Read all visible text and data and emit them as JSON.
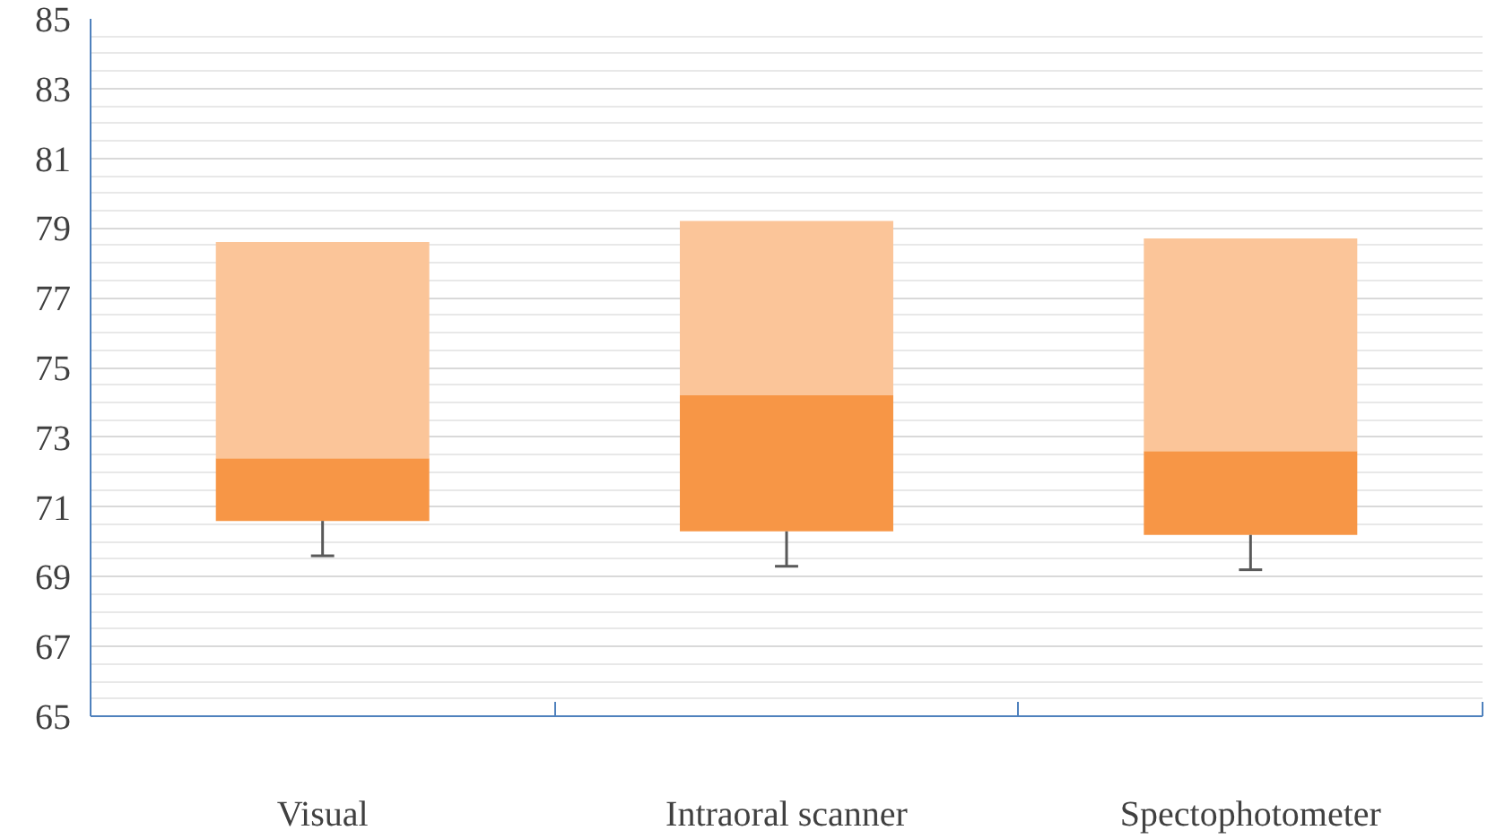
{
  "chart_data": {
    "type": "box",
    "categories": [
      "Visual",
      "Intraoral scanner",
      "Spectophotometer"
    ],
    "boxes": [
      {
        "low": 69.6,
        "q1": 70.6,
        "median": 72.4,
        "q3": 78.6,
        "high": 78.6
      },
      {
        "low": 69.3,
        "q1": 70.3,
        "median": 74.2,
        "q3": 79.2,
        "high": 79.2
      },
      {
        "low": 69.2,
        "q1": 70.2,
        "median": 72.6,
        "q3": 78.7,
        "high": 78.7
      }
    ],
    "colors": [
      "#f79646",
      "#f79646",
      "#f79646"
    ],
    "ylim": [
      65,
      85
    ],
    "yticks": [
      65,
      67,
      69,
      71,
      73,
      75,
      77,
      79,
      81,
      83,
      85
    ],
    "grid": "y"
  }
}
